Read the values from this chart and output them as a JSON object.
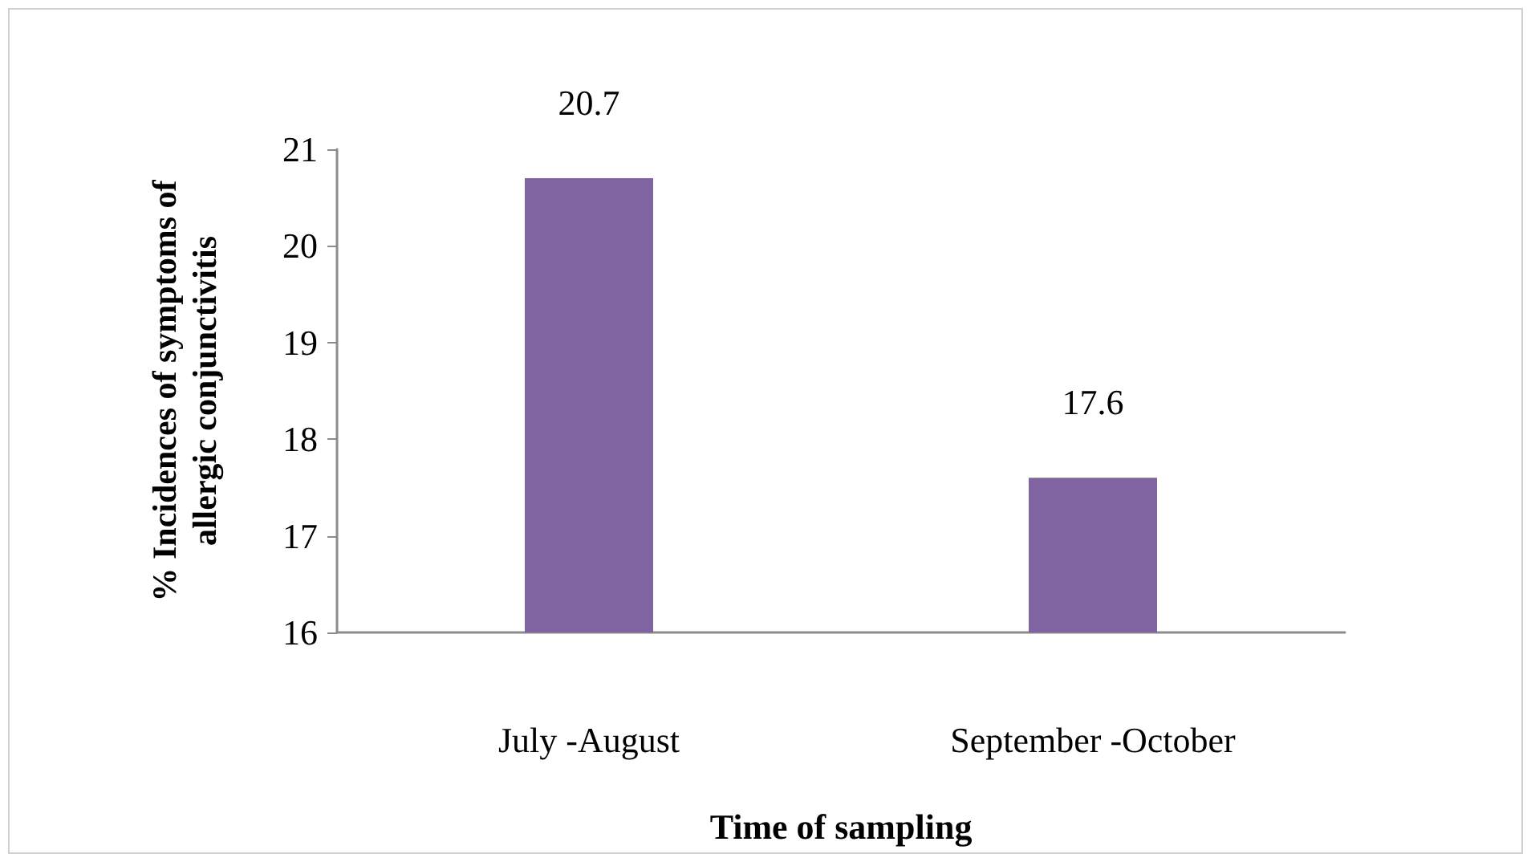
{
  "chart_data": {
    "type": "bar",
    "categories": [
      "July -August",
      "September -October"
    ],
    "values": [
      20.7,
      17.6
    ],
    "color": "#7f64a1",
    "xlabel": "Time of sampling",
    "ylabel": "% Incidences of symptoms of allergic conjunctivitis",
    "ylim": [
      16,
      21
    ],
    "yticks": [
      16,
      17,
      18,
      19,
      20,
      21
    ],
    "grid": false,
    "data_labels": true
  }
}
